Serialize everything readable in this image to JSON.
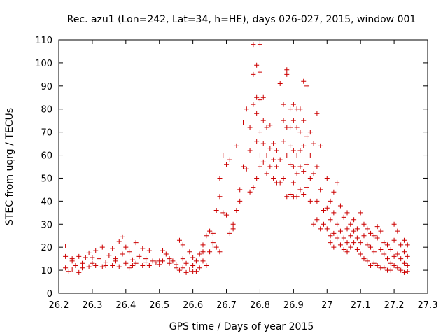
{
  "chart_data": {
    "type": "scatter",
    "title": "Rec. azu1 (Lon=242, Lat=34, h=HE), days 026-027, 2015, window 001",
    "xlabel": "GPS time / Days of year 2015",
    "ylabel": "STEC from uqrg / TECUs",
    "xlim": [
      26.2,
      27.3
    ],
    "ylim": [
      0,
      110
    ],
    "xticks": [
      "26.2",
      "26.3",
      "26.4",
      "26.5",
      "26.6",
      "26.7",
      "26.8",
      "26.9",
      "27",
      "27.1",
      "27.2",
      "27.3"
    ],
    "yticks": [
      "0",
      "10",
      "20",
      "30",
      "40",
      "50",
      "60",
      "70",
      "80",
      "90",
      "100",
      "110"
    ],
    "grid": false,
    "legend": "none",
    "marker": "plus",
    "color": "#cc0000",
    "series": [
      {
        "points": [
          [
            26.22,
            20.5
          ],
          [
            26.22,
            16
          ],
          [
            26.22,
            11
          ],
          [
            26.23,
            9.5
          ],
          [
            26.24,
            15
          ],
          [
            26.24,
            10.5
          ],
          [
            26.25,
            12
          ],
          [
            26.26,
            16
          ],
          [
            26.26,
            9
          ],
          [
            26.27,
            13
          ],
          [
            26.28,
            15.5
          ],
          [
            26.29,
            17.5
          ],
          [
            26.29,
            11.5
          ],
          [
            26.3,
            13
          ],
          [
            26.31,
            18.5
          ],
          [
            26.31,
            12
          ],
          [
            26.32,
            15
          ],
          [
            26.33,
            20
          ],
          [
            26.33,
            11.5
          ],
          [
            26.34,
            13.5
          ],
          [
            26.35,
            16.5
          ],
          [
            26.36,
            12
          ],
          [
            26.36,
            19.5
          ],
          [
            26.37,
            14
          ],
          [
            26.38,
            22.5
          ],
          [
            26.38,
            11.5
          ],
          [
            26.39,
            17
          ],
          [
            26.39,
            24.5
          ],
          [
            26.4,
            13
          ],
          [
            26.4,
            20
          ],
          [
            26.41,
            18
          ],
          [
            26.41,
            11
          ],
          [
            26.42,
            14.5
          ],
          [
            26.43,
            22
          ],
          [
            26.43,
            13
          ],
          [
            26.44,
            16
          ],
          [
            26.45,
            19.5
          ],
          [
            26.45,
            12
          ],
          [
            26.46,
            15
          ],
          [
            26.47,
            18.5
          ],
          [
            26.47,
            12
          ],
          [
            26.48,
            14
          ],
          [
            26.49,
            13.5
          ],
          [
            26.5,
            12.5
          ],
          [
            26.51,
            18.5
          ],
          [
            26.51,
            14
          ],
          [
            26.52,
            17
          ],
          [
            26.53,
            13
          ],
          [
            26.54,
            14
          ],
          [
            26.55,
            12.5
          ],
          [
            26.56,
            23
          ],
          [
            26.56,
            10
          ],
          [
            26.57,
            21
          ],
          [
            26.57,
            15
          ],
          [
            26.58,
            9
          ],
          [
            26.58,
            13
          ],
          [
            26.59,
            10.5
          ],
          [
            26.59,
            18
          ],
          [
            26.6,
            12
          ],
          [
            26.6,
            15.5
          ],
          [
            26.61,
            9.5
          ],
          [
            26.61,
            14
          ],
          [
            26.62,
            11
          ],
          [
            26.62,
            17
          ],
          [
            26.63,
            21
          ],
          [
            26.63,
            14
          ],
          [
            26.64,
            25
          ],
          [
            26.64,
            12
          ],
          [
            26.65,
            27
          ],
          [
            26.65,
            18
          ],
          [
            26.66,
            22
          ],
          [
            26.66,
            26
          ],
          [
            26.67,
            36
          ],
          [
            26.67,
            20
          ],
          [
            26.68,
            50
          ],
          [
            26.68,
            42
          ],
          [
            26.68,
            18
          ],
          [
            26.69,
            60
          ],
          [
            26.69,
            35
          ],
          [
            26.7,
            56
          ],
          [
            26.7,
            34
          ],
          [
            26.71,
            58
          ],
          [
            26.71,
            26
          ],
          [
            26.72,
            28
          ],
          [
            26.72,
            30
          ],
          [
            26.73,
            36
          ],
          [
            26.73,
            64
          ],
          [
            26.74,
            45
          ],
          [
            26.74,
            40
          ],
          [
            26.75,
            55
          ],
          [
            26.75,
            74
          ],
          [
            26.76,
            54
          ],
          [
            26.76,
            80
          ],
          [
            26.77,
            44
          ],
          [
            26.77,
            72
          ],
          [
            26.77,
            62
          ],
          [
            26.78,
            82
          ],
          [
            26.78,
            95
          ],
          [
            26.78,
            108
          ],
          [
            26.78,
            46
          ],
          [
            26.79,
            85
          ],
          [
            26.79,
            99
          ],
          [
            26.79,
            78
          ],
          [
            26.79,
            66
          ],
          [
            26.79,
            50
          ],
          [
            26.8,
            108
          ],
          [
            26.8,
            96
          ],
          [
            26.8,
            84
          ],
          [
            26.8,
            70
          ],
          [
            26.8,
            60
          ],
          [
            26.8,
            55
          ],
          [
            26.81,
            85
          ],
          [
            26.81,
            75
          ],
          [
            26.81,
            65
          ],
          [
            26.81,
            57
          ],
          [
            26.82,
            72
          ],
          [
            26.82,
            60
          ],
          [
            26.82,
            52
          ],
          [
            26.83,
            73
          ],
          [
            26.83,
            63
          ],
          [
            26.83,
            55
          ],
          [
            26.84,
            65
          ],
          [
            26.84,
            58
          ],
          [
            26.84,
            50
          ],
          [
            26.85,
            62
          ],
          [
            26.85,
            55
          ],
          [
            26.85,
            48
          ],
          [
            26.86,
            91
          ],
          [
            26.86,
            58
          ],
          [
            26.86,
            48
          ],
          [
            26.87,
            82
          ],
          [
            26.87,
            75
          ],
          [
            26.87,
            66
          ],
          [
            26.87,
            50
          ],
          [
            26.88,
            95
          ],
          [
            26.88,
            97
          ],
          [
            26.88,
            72
          ],
          [
            26.88,
            60
          ],
          [
            26.88,
            42
          ],
          [
            26.89,
            80
          ],
          [
            26.89,
            72
          ],
          [
            26.89,
            64
          ],
          [
            26.89,
            56
          ],
          [
            26.89,
            43
          ],
          [
            26.9,
            82
          ],
          [
            26.9,
            75
          ],
          [
            26.9,
            62
          ],
          [
            26.9,
            55
          ],
          [
            26.9,
            48
          ],
          [
            26.9,
            42
          ],
          [
            26.91,
            80
          ],
          [
            26.91,
            72
          ],
          [
            26.91,
            60
          ],
          [
            26.91,
            52
          ],
          [
            26.91,
            42
          ],
          [
            26.92,
            80
          ],
          [
            26.92,
            70
          ],
          [
            26.92,
            62
          ],
          [
            26.92,
            55
          ],
          [
            26.92,
            45
          ],
          [
            26.93,
            92
          ],
          [
            26.93,
            75
          ],
          [
            26.93,
            64
          ],
          [
            26.93,
            53
          ],
          [
            26.93,
            43
          ],
          [
            26.94,
            90
          ],
          [
            26.94,
            68
          ],
          [
            26.94,
            56
          ],
          [
            26.94,
            46
          ],
          [
            26.95,
            70
          ],
          [
            26.95,
            60
          ],
          [
            26.95,
            50
          ],
          [
            26.95,
            40
          ],
          [
            26.96,
            65
          ],
          [
            26.96,
            52
          ],
          [
            26.96,
            30
          ],
          [
            26.97,
            78
          ],
          [
            26.97,
            55
          ],
          [
            26.97,
            40
          ],
          [
            26.97,
            32
          ],
          [
            26.98,
            64
          ],
          [
            26.98,
            45
          ],
          [
            26.98,
            28
          ],
          [
            26.99,
            36
          ],
          [
            26.99,
            30
          ],
          [
            27.0,
            50
          ],
          [
            27.0,
            37
          ],
          [
            27.0,
            28
          ],
          [
            27.01,
            40
          ],
          [
            27.01,
            32
          ],
          [
            27.01,
            25
          ],
          [
            27.01,
            22
          ],
          [
            27.02,
            44
          ],
          [
            27.02,
            35
          ],
          [
            27.02,
            26
          ],
          [
            27.02,
            20
          ],
          [
            27.03,
            48
          ],
          [
            27.03,
            30
          ],
          [
            27.03,
            24
          ],
          [
            27.04,
            38
          ],
          [
            27.04,
            27
          ],
          [
            27.04,
            21
          ],
          [
            27.05,
            33
          ],
          [
            27.05,
            24
          ],
          [
            27.05,
            19
          ],
          [
            27.06,
            35
          ],
          [
            27.06,
            28
          ],
          [
            27.06,
            22
          ],
          [
            27.06,
            18
          ],
          [
            27.07,
            30
          ],
          [
            27.07,
            25
          ],
          [
            27.07,
            20
          ],
          [
            27.08,
            32
          ],
          [
            27.08,
            27
          ],
          [
            27.08,
            22
          ],
          [
            27.09,
            28
          ],
          [
            27.09,
            24
          ],
          [
            27.09,
            19
          ],
          [
            27.1,
            35
          ],
          [
            27.1,
            22
          ],
          [
            27.1,
            17
          ],
          [
            27.11,
            30
          ],
          [
            27.11,
            25
          ],
          [
            27.11,
            15
          ],
          [
            27.12,
            28
          ],
          [
            27.12,
            21
          ],
          [
            27.12,
            14
          ],
          [
            27.13,
            26
          ],
          [
            27.13,
            20
          ],
          [
            27.13,
            12
          ],
          [
            27.14,
            25
          ],
          [
            27.14,
            18
          ],
          [
            27.14,
            13
          ],
          [
            27.15,
            29
          ],
          [
            27.15,
            24
          ],
          [
            27.15,
            12
          ],
          [
            27.16,
            27
          ],
          [
            27.16,
            19
          ],
          [
            27.16,
            11
          ],
          [
            27.17,
            22
          ],
          [
            27.17,
            17
          ],
          [
            27.17,
            11
          ],
          [
            27.18,
            21
          ],
          [
            27.18,
            15
          ],
          [
            27.18,
            10
          ],
          [
            27.19,
            19
          ],
          [
            27.19,
            13
          ],
          [
            27.19,
            10
          ],
          [
            27.2,
            30
          ],
          [
            27.2,
            23
          ],
          [
            27.2,
            16
          ],
          [
            27.2,
            12
          ],
          [
            27.21,
            27
          ],
          [
            27.21,
            17
          ],
          [
            27.21,
            11
          ],
          [
            27.22,
            21
          ],
          [
            27.22,
            15
          ],
          [
            27.22,
            10
          ],
          [
            27.23,
            23
          ],
          [
            27.23,
            18
          ],
          [
            27.23,
            13
          ],
          [
            27.23,
            9
          ],
          [
            27.24,
            21
          ],
          [
            27.24,
            16
          ],
          [
            27.24,
            12
          ],
          [
            27.24,
            9.5
          ],
          [
            26.24,
            14
          ],
          [
            26.27,
            11
          ],
          [
            26.3,
            15.5
          ],
          [
            26.34,
            12
          ],
          [
            26.37,
            15
          ],
          [
            26.42,
            12
          ],
          [
            26.46,
            13.5
          ],
          [
            26.5,
            14
          ],
          [
            26.53,
            15
          ],
          [
            26.55,
            11
          ],
          [
            26.57,
            11
          ],
          [
            26.6,
            9.5
          ],
          [
            26.63,
            18
          ],
          [
            26.66,
            20.5
          ]
        ]
      }
    ]
  }
}
